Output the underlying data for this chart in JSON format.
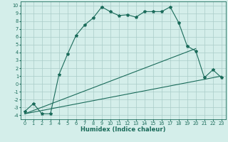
{
  "xlabel": "Humidex (Indice chaleur)",
  "bg_color": "#d4eeea",
  "line_color": "#1a6b5a",
  "grid_color": "#aaccc8",
  "xlim": [
    -0.5,
    23.5
  ],
  "ylim": [
    -4.5,
    10.5
  ],
  "xticks": [
    0,
    1,
    2,
    3,
    4,
    5,
    6,
    7,
    8,
    9,
    10,
    11,
    12,
    13,
    14,
    15,
    16,
    17,
    18,
    19,
    20,
    21,
    22,
    23
  ],
  "yticks": [
    -4,
    -3,
    -2,
    -1,
    0,
    1,
    2,
    3,
    4,
    5,
    6,
    7,
    8,
    9,
    10
  ],
  "main_x": [
    0,
    1,
    2,
    3,
    4,
    5,
    6,
    7,
    8,
    9,
    10,
    11,
    12,
    13,
    14,
    15,
    16,
    17,
    18,
    19,
    20,
    21,
    22,
    23
  ],
  "main_y": [
    -3.5,
    -2.5,
    -3.8,
    -3.8,
    1.2,
    3.8,
    6.2,
    7.5,
    8.4,
    9.8,
    9.2,
    8.7,
    8.8,
    8.5,
    9.2,
    9.2,
    9.2,
    9.8,
    7.8,
    4.8,
    4.2,
    0.8,
    1.8,
    0.8
  ],
  "line2_x": [
    0,
    20
  ],
  "line2_y": [
    -3.8,
    4.5
  ],
  "line3_x": [
    0,
    23
  ],
  "line3_y": [
    -3.8,
    1.0
  ],
  "xlabel_fontsize": 6.0,
  "tick_fontsize": 4.8
}
